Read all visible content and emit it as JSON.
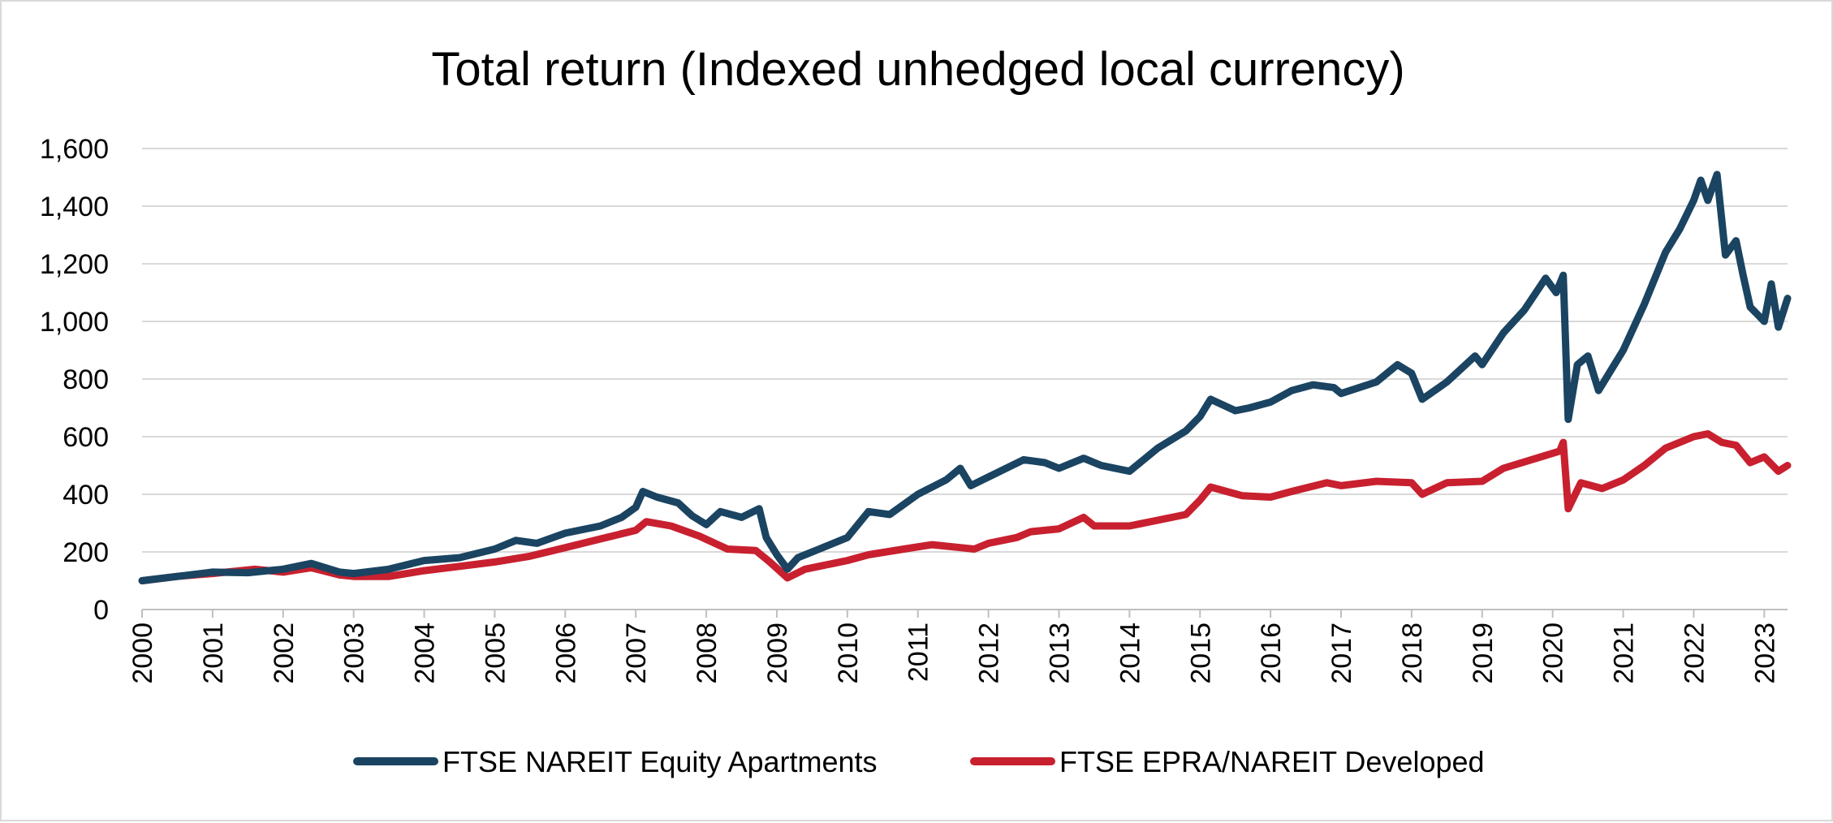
{
  "chart_data": {
    "type": "line",
    "title": "Total return (Indexed unhedged local currency)",
    "xlabel": "",
    "ylabel": "",
    "xlim": [
      2000,
      2023.33
    ],
    "ylim": [
      0,
      1600
    ],
    "y_ticks": [
      0,
      200,
      400,
      600,
      800,
      1000,
      1200,
      1400,
      1600
    ],
    "y_tick_labels": [
      "0",
      "200",
      "400",
      "600",
      "800",
      "1,000",
      "1,200",
      "1,400",
      "1,600"
    ],
    "x_ticks": [
      2000,
      2001,
      2002,
      2003,
      2004,
      2005,
      2006,
      2007,
      2008,
      2009,
      2010,
      2011,
      2012,
      2013,
      2014,
      2015,
      2016,
      2017,
      2018,
      2019,
      2020,
      2021,
      2022,
      2023
    ],
    "x_tick_labels": [
      "2000",
      "2001",
      "2002",
      "2003",
      "2004",
      "2005",
      "2006",
      "2007",
      "2008",
      "2009",
      "2010",
      "2011",
      "2012",
      "2013",
      "2014",
      "2015",
      "2016",
      "2017",
      "2018",
      "2019",
      "2020",
      "2021",
      "2022",
      "2023"
    ],
    "grid": "horizontal",
    "legend_position": "bottom",
    "series": [
      {
        "name": "FTSE NAREIT Equity Apartments",
        "color": "#1a4461",
        "points": [
          [
            2000.0,
            100
          ],
          [
            2000.5,
            115
          ],
          [
            2001.0,
            130
          ],
          [
            2001.5,
            128
          ],
          [
            2002.0,
            140
          ],
          [
            2002.4,
            160
          ],
          [
            2002.8,
            130
          ],
          [
            2003.0,
            125
          ],
          [
            2003.5,
            140
          ],
          [
            2004.0,
            170
          ],
          [
            2004.5,
            180
          ],
          [
            2005.0,
            210
          ],
          [
            2005.3,
            240
          ],
          [
            2005.6,
            230
          ],
          [
            2006.0,
            265
          ],
          [
            2006.5,
            290
          ],
          [
            2006.8,
            320
          ],
          [
            2007.0,
            355
          ],
          [
            2007.1,
            410
          ],
          [
            2007.3,
            390
          ],
          [
            2007.6,
            370
          ],
          [
            2007.8,
            325
          ],
          [
            2008.0,
            295
          ],
          [
            2008.2,
            340
          ],
          [
            2008.5,
            320
          ],
          [
            2008.75,
            350
          ],
          [
            2008.85,
            250
          ],
          [
            2009.0,
            190
          ],
          [
            2009.15,
            140
          ],
          [
            2009.3,
            180
          ],
          [
            2009.6,
            210
          ],
          [
            2010.0,
            250
          ],
          [
            2010.3,
            340
          ],
          [
            2010.6,
            330
          ],
          [
            2011.0,
            400
          ],
          [
            2011.4,
            450
          ],
          [
            2011.6,
            490
          ],
          [
            2011.75,
            430
          ],
          [
            2012.0,
            460
          ],
          [
            2012.5,
            520
          ],
          [
            2012.8,
            510
          ],
          [
            2013.0,
            490
          ],
          [
            2013.35,
            525
          ],
          [
            2013.6,
            500
          ],
          [
            2014.0,
            480
          ],
          [
            2014.4,
            560
          ],
          [
            2014.8,
            620
          ],
          [
            2015.0,
            670
          ],
          [
            2015.15,
            730
          ],
          [
            2015.5,
            690
          ],
          [
            2015.7,
            700
          ],
          [
            2016.0,
            720
          ],
          [
            2016.3,
            760
          ],
          [
            2016.6,
            780
          ],
          [
            2016.9,
            770
          ],
          [
            2017.0,
            750
          ],
          [
            2017.5,
            790
          ],
          [
            2017.8,
            850
          ],
          [
            2018.0,
            820
          ],
          [
            2018.15,
            730
          ],
          [
            2018.5,
            790
          ],
          [
            2018.9,
            880
          ],
          [
            2019.0,
            850
          ],
          [
            2019.3,
            960
          ],
          [
            2019.6,
            1040
          ],
          [
            2019.9,
            1150
          ],
          [
            2020.05,
            1100
          ],
          [
            2020.15,
            1160
          ],
          [
            2020.22,
            660
          ],
          [
            2020.35,
            850
          ],
          [
            2020.5,
            880
          ],
          [
            2020.65,
            760
          ],
          [
            2020.8,
            820
          ],
          [
            2021.0,
            900
          ],
          [
            2021.3,
            1060
          ],
          [
            2021.6,
            1240
          ],
          [
            2021.8,
            1320
          ],
          [
            2022.0,
            1420
          ],
          [
            2022.1,
            1490
          ],
          [
            2022.2,
            1420
          ],
          [
            2022.33,
            1510
          ],
          [
            2022.45,
            1230
          ],
          [
            2022.6,
            1280
          ],
          [
            2022.7,
            1160
          ],
          [
            2022.8,
            1050
          ],
          [
            2023.0,
            1000
          ],
          [
            2023.1,
            1130
          ],
          [
            2023.2,
            980
          ],
          [
            2023.33,
            1080
          ]
        ]
      },
      {
        "name": "FTSE EPRA/NAREIT Developed",
        "color": "#c8202f",
        "points": [
          [
            2000.0,
            100
          ],
          [
            2000.5,
            115
          ],
          [
            2001.0,
            125
          ],
          [
            2001.6,
            140
          ],
          [
            2002.0,
            130
          ],
          [
            2002.4,
            145
          ],
          [
            2002.8,
            120
          ],
          [
            2003.0,
            115
          ],
          [
            2003.5,
            115
          ],
          [
            2004.0,
            135
          ],
          [
            2004.5,
            150
          ],
          [
            2005.0,
            165
          ],
          [
            2005.5,
            185
          ],
          [
            2006.0,
            215
          ],
          [
            2006.5,
            245
          ],
          [
            2007.0,
            275
          ],
          [
            2007.15,
            305
          ],
          [
            2007.5,
            290
          ],
          [
            2007.9,
            255
          ],
          [
            2008.3,
            210
          ],
          [
            2008.7,
            205
          ],
          [
            2008.9,
            165
          ],
          [
            2009.15,
            110
          ],
          [
            2009.4,
            140
          ],
          [
            2009.8,
            160
          ],
          [
            2010.0,
            170
          ],
          [
            2010.3,
            190
          ],
          [
            2010.8,
            210
          ],
          [
            2011.2,
            225
          ],
          [
            2011.6,
            215
          ],
          [
            2011.8,
            210
          ],
          [
            2012.0,
            230
          ],
          [
            2012.4,
            250
          ],
          [
            2012.6,
            270
          ],
          [
            2013.0,
            280
          ],
          [
            2013.35,
            320
          ],
          [
            2013.5,
            290
          ],
          [
            2014.0,
            290
          ],
          [
            2014.4,
            310
          ],
          [
            2014.8,
            330
          ],
          [
            2015.0,
            380
          ],
          [
            2015.15,
            425
          ],
          [
            2015.6,
            395
          ],
          [
            2016.0,
            390
          ],
          [
            2016.3,
            410
          ],
          [
            2016.8,
            440
          ],
          [
            2017.0,
            430
          ],
          [
            2017.5,
            445
          ],
          [
            2018.0,
            440
          ],
          [
            2018.15,
            400
          ],
          [
            2018.5,
            440
          ],
          [
            2019.0,
            445
          ],
          [
            2019.3,
            490
          ],
          [
            2019.7,
            520
          ],
          [
            2020.1,
            550
          ],
          [
            2020.15,
            580
          ],
          [
            2020.22,
            350
          ],
          [
            2020.4,
            440
          ],
          [
            2020.7,
            420
          ],
          [
            2021.0,
            450
          ],
          [
            2021.3,
            500
          ],
          [
            2021.6,
            560
          ],
          [
            2022.0,
            600
          ],
          [
            2022.2,
            610
          ],
          [
            2022.4,
            580
          ],
          [
            2022.6,
            570
          ],
          [
            2022.8,
            510
          ],
          [
            2023.0,
            530
          ],
          [
            2023.2,
            480
          ],
          [
            2023.33,
            500
          ]
        ]
      }
    ]
  }
}
